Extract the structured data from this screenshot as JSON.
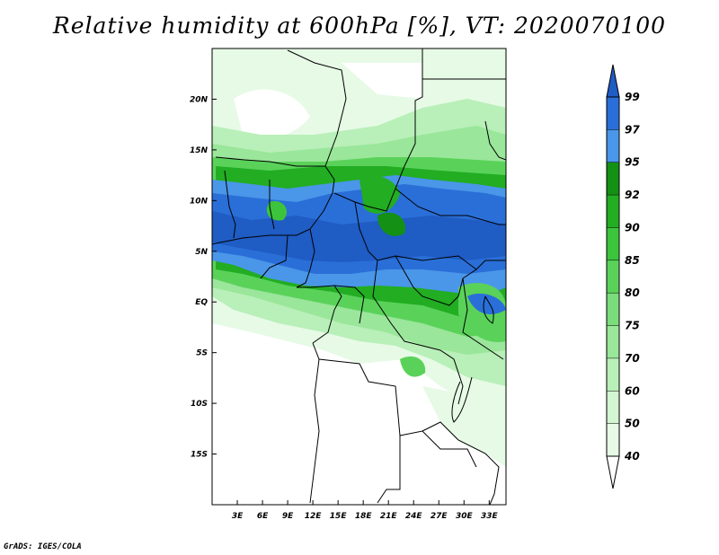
{
  "title": "Relative humidity at 600hPa [%], VT: 2020070100",
  "credit": "GrADS: IGES/COLA",
  "map": {
    "lon_range": [
      0,
      35
    ],
    "lat_range": [
      -20,
      25
    ],
    "lat_ticks": [
      {
        "lat": 20,
        "label": "20N"
      },
      {
        "lat": 15,
        "label": "15N"
      },
      {
        "lat": 10,
        "label": "10N"
      },
      {
        "lat": 5,
        "label": "5N"
      },
      {
        "lat": 0,
        "label": "EQ"
      },
      {
        "lat": -5,
        "label": "5S"
      },
      {
        "lat": -10,
        "label": "10S"
      },
      {
        "lat": -15,
        "label": "15S"
      }
    ],
    "lon_ticks": [
      {
        "lon": 3,
        "label": "3E"
      },
      {
        "lon": 6,
        "label": "6E"
      },
      {
        "lon": 9,
        "label": "9E"
      },
      {
        "lon": 12,
        "label": "12E"
      },
      {
        "lon": 15,
        "label": "15E"
      },
      {
        "lon": 18,
        "label": "18E"
      },
      {
        "lon": 21,
        "label": "21E"
      },
      {
        "lon": 24,
        "label": "24E"
      },
      {
        "lon": 27,
        "label": "27E"
      },
      {
        "lon": 30,
        "label": "30E"
      },
      {
        "lon": 33,
        "label": "33E"
      }
    ]
  },
  "colorbar": {
    "levels": [
      {
        "label": "40",
        "color": "#e6fae6"
      },
      {
        "label": "50",
        "color": "#d2f5d2"
      },
      {
        "label": "60",
        "color": "#b9efb9"
      },
      {
        "label": "70",
        "color": "#9ae69a"
      },
      {
        "label": "75",
        "color": "#7bdc7b"
      },
      {
        "label": "80",
        "color": "#5ad25a"
      },
      {
        "label": "85",
        "color": "#3cc43c"
      },
      {
        "label": "90",
        "color": "#22ad22"
      },
      {
        "label": "92",
        "color": "#149014"
      },
      {
        "label": "95",
        "color": "#4a96e8"
      },
      {
        "label": "97",
        "color": "#2a6fd8"
      },
      {
        "label": "99",
        "color": "#1f5cc4"
      }
    ],
    "below_color": "#ffffff",
    "above_color": "#1f5cc4"
  }
}
